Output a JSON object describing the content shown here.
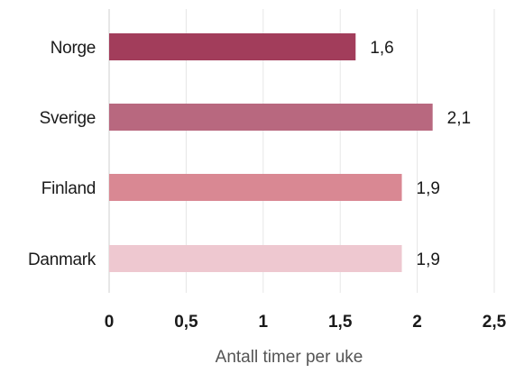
{
  "chart_data": {
    "type": "bar",
    "orientation": "horizontal",
    "categories": [
      "Norge",
      "Sverige",
      "Finland",
      "Danmark"
    ],
    "values": [
      1.6,
      2.1,
      1.9,
      1.9
    ],
    "value_labels": [
      "1,6",
      "2,1",
      "1,9",
      "1,9"
    ],
    "colors": [
      "#a23d5b",
      "#b8687f",
      "#d98893",
      "#eec8d0"
    ],
    "title": "",
    "xlabel": "Antall timer per uke",
    "ylabel": "",
    "xlim": [
      0,
      2.5
    ],
    "x_ticks": [
      0,
      0.5,
      1,
      1.5,
      2,
      2.5
    ],
    "x_tick_labels": [
      "0",
      "0,5",
      "1",
      "1,5",
      "2",
      "2,5"
    ],
    "grid": "vertical",
    "legend": "none"
  }
}
